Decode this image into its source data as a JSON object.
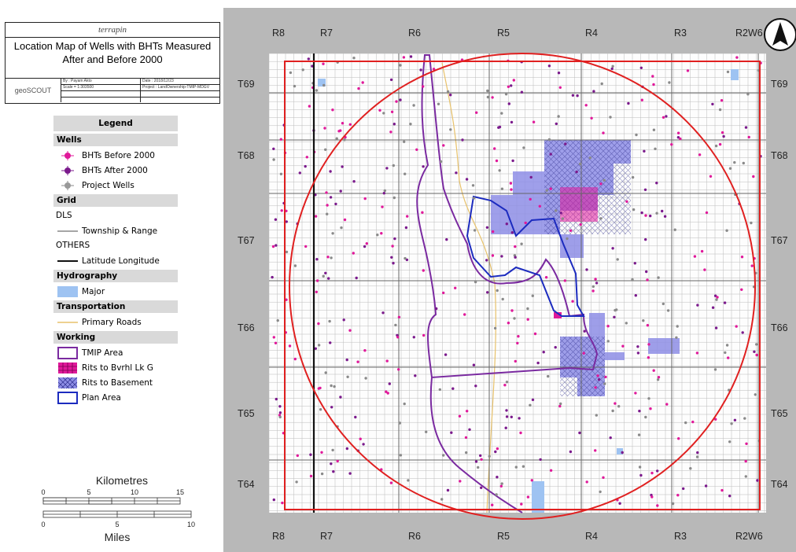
{
  "header": {
    "logo_text": "terrapin",
    "title": "Location Map of Wells with BHTs Measured After and Before 2000",
    "geoscout_logo": "geoSCOUT",
    "author": "By : Payam Akto",
    "scale": "Scale = 1:303500",
    "date": "Date : 2018/12/23",
    "project": "Project : LandOwnership-TMIP-MDGV"
  },
  "legend": {
    "title": "Legend",
    "sections": {
      "wells": {
        "title": "Wells",
        "items": [
          {
            "label": "BHTs Before 2000",
            "icon": "well-pink-icon",
            "color": "#e0199a"
          },
          {
            "label": "BHTs After 2000",
            "icon": "well-purple-icon",
            "color": "#7b1a8c"
          },
          {
            "label": "Project Wells",
            "icon": "well-gray-icon",
            "color": "#888888"
          }
        ]
      },
      "grid": {
        "title": "Grid",
        "dls_label": "DLS",
        "township_label": "Township & Range",
        "others_label": "OTHERS",
        "latlong_label": "Latitude Longitude"
      },
      "hydrography": {
        "title": "Hydrography",
        "major_label": "Major",
        "color": "#9ec3f2"
      },
      "transportation": {
        "title": "Transportation",
        "roads_label": "Primary Roads",
        "color": "#e8c26b"
      },
      "working": {
        "title": "Working",
        "items": [
          {
            "label": "TMIP Area",
            "icon": "tmip-area-swatch",
            "color": "#7a2aa0"
          },
          {
            "label": "Rits to Bvrhl Lk G",
            "icon": "rits-bvrhl-swatch",
            "color": "#e0199a"
          },
          {
            "label": "Rits to Basement",
            "icon": "rits-basement-swatch",
            "color": "#8e8ee6"
          },
          {
            "label": "Plan Area",
            "icon": "plan-area-swatch",
            "color": "#1c2bbf"
          }
        ]
      }
    }
  },
  "scale_bar": {
    "km_label": "Kilometres",
    "km_ticks": [
      "0",
      "5",
      "10",
      "15"
    ],
    "miles_label": "Miles",
    "mile_ticks": [
      "0",
      "5",
      "10"
    ]
  },
  "map": {
    "north_arrow": "north-arrow-icon",
    "ranges_top": [
      "R8",
      "R7",
      "R6",
      "R5",
      "R4",
      "R3",
      "R2W6"
    ],
    "ranges_bottom": [
      "R8",
      "R7",
      "R6",
      "R5",
      "R4",
      "R3",
      "R2W6"
    ],
    "townships_left": [
      "T69",
      "T68",
      "T67",
      "T66",
      "T65",
      "T64"
    ],
    "townships_right": [
      "T69",
      "T68",
      "T67",
      "T66",
      "T65",
      "T64"
    ],
    "colors": {
      "frame_red": "#e02020",
      "basement_fill": "#8e8ee6",
      "bvrhl_fill": "#e0199a",
      "plan_outline": "#1c2bbf",
      "tmip_outline": "#7a2aa0",
      "road": "#e8c26b",
      "water": "#9ec3f2"
    }
  }
}
